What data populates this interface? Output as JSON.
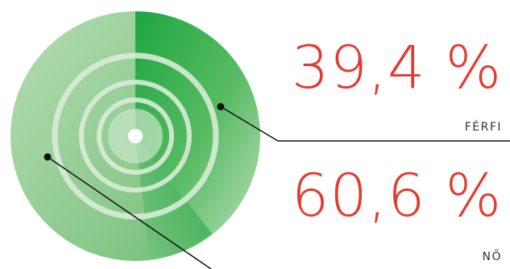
{
  "chart_data": {
    "type": "pie",
    "series": [
      {
        "name": "FÉRFI",
        "value": 39.4,
        "value_label": "39,4 %",
        "color": "#2ba84a"
      },
      {
        "name": "NŐ",
        "value": 60.6,
        "value_label": "60,6 %",
        "color": "#a8d7a8"
      }
    ],
    "title": "",
    "legend": "right"
  },
  "colors": {
    "value_text": "#e23a2e",
    "label_text": "#333333",
    "leader_line": "#111111"
  }
}
